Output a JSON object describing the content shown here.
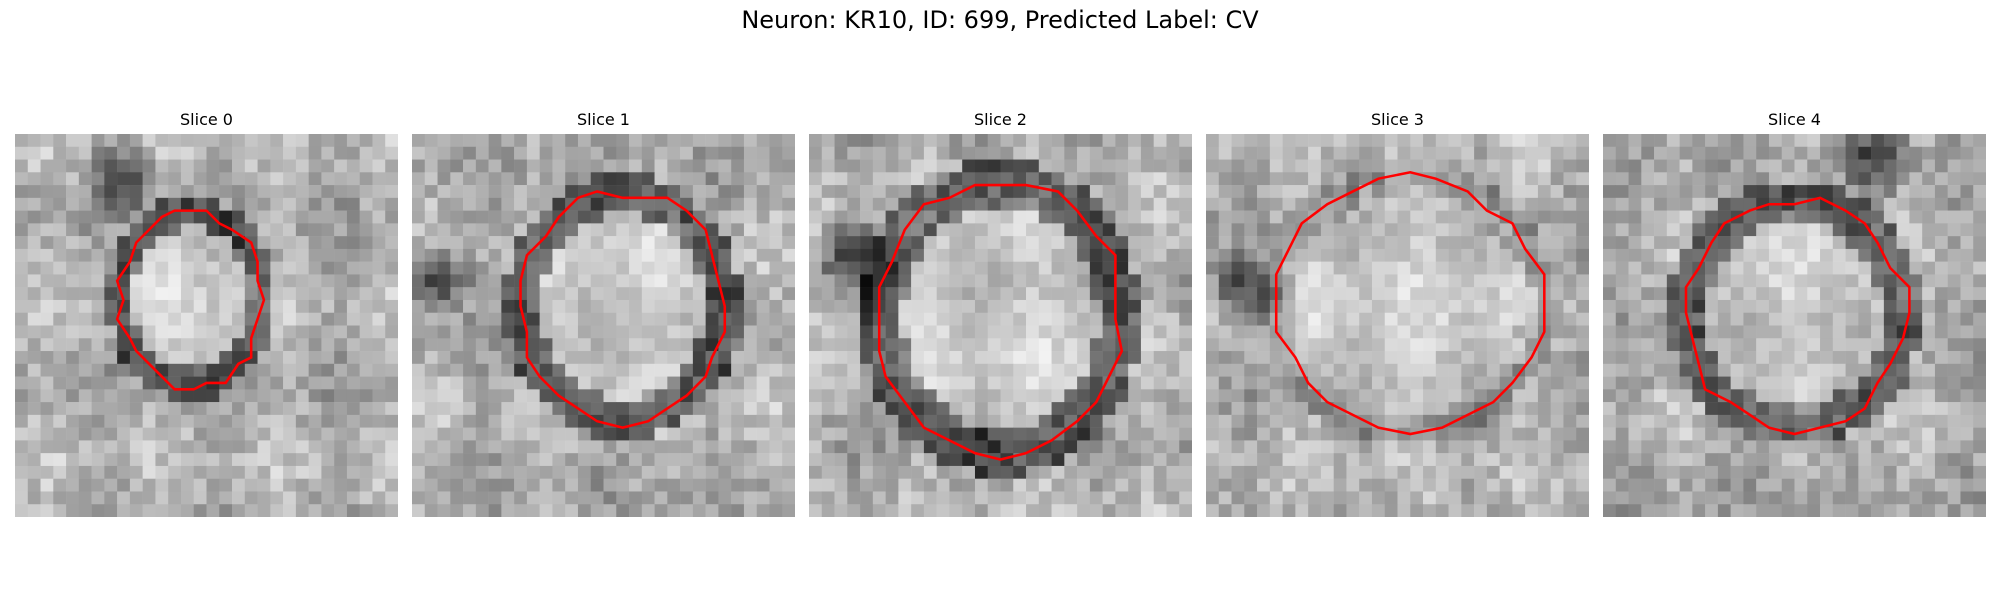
{
  "figure": {
    "title": "Neuron: KR10, ID: 699, Predicted Label: CV"
  },
  "contour_color": "#ff0000",
  "panels": [
    {
      "title": "Slice 0",
      "seed": 11,
      "contour_center": [
        0.46,
        0.43
      ],
      "contour_radius": [
        0.19,
        0.23
      ],
      "dark_ring": true,
      "dark_blob": [
        0.28,
        0.12
      ]
    },
    {
      "title": "Slice 1",
      "seed": 23,
      "contour_center": [
        0.55,
        0.45
      ],
      "contour_radius": [
        0.27,
        0.3
      ],
      "dark_ring": true,
      "dark_blob": [
        0.06,
        0.38
      ]
    },
    {
      "title": "Slice 2",
      "seed": 37,
      "contour_center": [
        0.5,
        0.48
      ],
      "contour_radius": [
        0.32,
        0.36
      ],
      "dark_ring": true,
      "dark_blob": [
        0.12,
        0.32
      ]
    },
    {
      "title": "Slice 3",
      "seed": 51,
      "contour_center": [
        0.53,
        0.44
      ],
      "contour_radius": [
        0.35,
        0.33
      ],
      "dark_ring": false,
      "dark_blob": [
        0.1,
        0.4
      ]
    },
    {
      "title": "Slice 4",
      "seed": 67,
      "contour_center": [
        0.5,
        0.47
      ],
      "contour_radius": [
        0.29,
        0.3
      ],
      "dark_ring": true,
      "dark_blob": [
        0.72,
        0.06
      ]
    }
  ]
}
